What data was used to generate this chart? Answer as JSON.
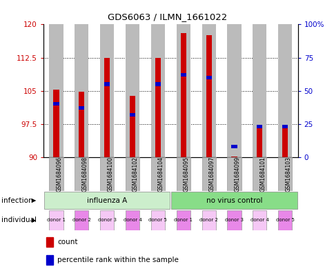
{
  "title": "GDS6063 / ILMN_1661022",
  "samples": [
    "GSM1684096",
    "GSM1684098",
    "GSM1684100",
    "GSM1684102",
    "GSM1684104",
    "GSM1684095",
    "GSM1684097",
    "GSM1684099",
    "GSM1684101",
    "GSM1684103"
  ],
  "red_values": [
    105.2,
    104.8,
    112.5,
    103.8,
    112.5,
    118.0,
    117.5,
    90.2,
    96.8,
    96.8
  ],
  "blue_pct": [
    40,
    37,
    55,
    32,
    55,
    62,
    60,
    8,
    23,
    23
  ],
  "ylim_left": [
    90,
    120
  ],
  "yticks_left": [
    90,
    97.5,
    105,
    112.5,
    120
  ],
  "yticks_right": [
    0,
    25,
    50,
    75,
    100
  ],
  "base": 90,
  "bar_red": "#cc0000",
  "bar_blue": "#0000cc",
  "bar_bg": "#bbbbbb",
  "inf_bg1": "#cceecc",
  "inf_bg2": "#88dd88",
  "ind_color1": "#f5c8f5",
  "ind_color2": "#e888e8",
  "legend_count": "count",
  "legend_pct": "percentile rank within the sample",
  "infection_labels": [
    "influenza A",
    "no virus control"
  ],
  "individual_labels": [
    "donor 1",
    "donor 2",
    "donor 3",
    "donor 4",
    "donor 5",
    "donor 1",
    "donor 2",
    "donor 3",
    "donor 4",
    "donor 5"
  ]
}
